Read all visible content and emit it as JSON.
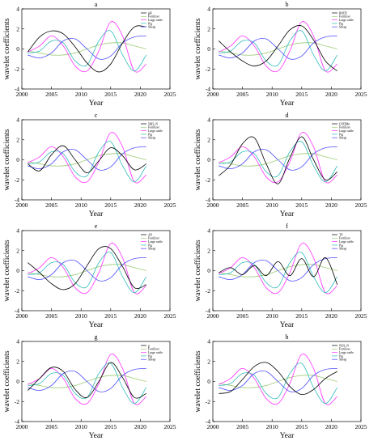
{
  "figure": {
    "background": "#ffffff"
  },
  "series_styles": {
    "first": {
      "color": "#000000"
    },
    "Fertilizer": {
      "color": "#9ccd74"
    },
    "Large cattle": {
      "color": "#ff33ff"
    },
    "Pig": {
      "color": "#33bbbb"
    },
    "Sheep": {
      "color": "#4c4cff"
    }
  },
  "chart_data": [
    {
      "type": "line",
      "title": "a",
      "xlabel": "Year",
      "ylabel": "wavelet coefficients",
      "xlim": [
        2000,
        2025
      ],
      "ylim": [
        -4,
        4
      ],
      "xticks": [
        2000,
        2005,
        2010,
        2015,
        2020,
        2025
      ],
      "yticks": [
        -4,
        -2,
        0,
        2,
        4
      ],
      "legend_position": "top-right",
      "x": [
        2001,
        2003,
        2005,
        2007,
        2009,
        2011,
        2013,
        2015,
        2017,
        2019,
        2021
      ],
      "series": [
        {
          "name": "pH",
          "values": [
            -0.3,
            1.2,
            1.8,
            1.5,
            0.2,
            -1.4,
            -2.3,
            -1.5,
            0.6,
            2.2,
            2.2
          ]
        },
        {
          "name": "Fertilizer",
          "values": [
            -0.2,
            -0.4,
            -0.6,
            -0.6,
            -0.4,
            0.0,
            0.4,
            0.6,
            0.6,
            0.3,
            0.0
          ]
        },
        {
          "name": "Large cattle",
          "values": [
            -0.3,
            0.3,
            1.3,
            0.3,
            -1.7,
            -2.2,
            -0.2,
            2.7,
            1.3,
            -2.2,
            -1.5
          ]
        },
        {
          "name": "Pig",
          "values": [
            -0.4,
            -0.2,
            0.8,
            0.6,
            -1.2,
            -1.6,
            0.8,
            1.8,
            -0.6,
            -2.2,
            -0.6
          ]
        },
        {
          "name": "Sheep",
          "values": [
            -0.6,
            -0.9,
            -0.4,
            0.8,
            1.0,
            0.0,
            -1.0,
            -0.7,
            0.6,
            1.2,
            1.3
          ]
        }
      ]
    },
    {
      "type": "line",
      "title": "b",
      "xlabel": "Year",
      "ylabel": "wavelet coefficients",
      "xlim": [
        2000,
        2025
      ],
      "ylim": [
        -4,
        4
      ],
      "xticks": [
        2000,
        2005,
        2010,
        2015,
        2020,
        2025
      ],
      "yticks": [
        -4,
        -2,
        0,
        2,
        4
      ],
      "legend_position": "top-right",
      "x": [
        2001,
        2003,
        2005,
        2007,
        2009,
        2011,
        2013,
        2015,
        2017,
        2019,
        2021
      ],
      "series": [
        {
          "name": "BOD5",
          "values": [
            0.8,
            -0.3,
            -1.2,
            -1.7,
            -1.2,
            0.3,
            1.9,
            2.3,
            0.9,
            -1.2,
            -2.2
          ]
        },
        {
          "name": "Fertilizer",
          "values": [
            -0.2,
            -0.4,
            -0.6,
            -0.6,
            -0.4,
            0.0,
            0.4,
            0.6,
            0.6,
            0.3,
            0.0
          ]
        },
        {
          "name": "Large cattle",
          "values": [
            -0.3,
            0.3,
            1.3,
            0.3,
            -1.7,
            -2.2,
            -0.2,
            2.7,
            1.3,
            -2.2,
            -1.5
          ]
        },
        {
          "name": "Pig",
          "values": [
            -0.4,
            -0.2,
            0.8,
            0.6,
            -1.2,
            -1.6,
            0.8,
            1.8,
            -0.6,
            -2.2,
            -0.6
          ]
        },
        {
          "name": "Sheep",
          "values": [
            -0.6,
            -0.9,
            -0.4,
            0.8,
            1.0,
            0.0,
            -1.0,
            -0.7,
            0.6,
            1.2,
            1.3
          ]
        }
      ]
    },
    {
      "type": "line",
      "title": "c",
      "xlabel": "Year",
      "ylabel": "wavelet coefficients",
      "xlim": [
        2000,
        2025
      ],
      "ylim": [
        -4,
        4
      ],
      "xticks": [
        2000,
        2005,
        2010,
        2015,
        2020,
        2025
      ],
      "yticks": [
        -4,
        -2,
        0,
        2,
        4
      ],
      "legend_position": "top-right",
      "x": [
        2001,
        2003,
        2005,
        2007,
        2009,
        2011,
        2013,
        2015,
        2017,
        2019,
        2021
      ],
      "series": [
        {
          "name": "NH3_N",
          "values": [
            -0.4,
            -1.1,
            0.5,
            1.4,
            0.0,
            -1.3,
            -0.1,
            1.2,
            0.4,
            -1.0,
            -0.4
          ]
        },
        {
          "name": "Fertilizer",
          "values": [
            -0.2,
            -0.4,
            -0.6,
            -0.6,
            -0.4,
            0.0,
            0.4,
            0.6,
            0.6,
            0.3,
            0.0
          ]
        },
        {
          "name": "Large cattle",
          "values": [
            -0.3,
            0.3,
            1.3,
            0.3,
            -1.7,
            -2.2,
            -0.2,
            2.7,
            1.3,
            -2.2,
            -1.5
          ]
        },
        {
          "name": "Pig",
          "values": [
            -0.4,
            -0.2,
            0.8,
            0.6,
            -1.2,
            -1.6,
            0.8,
            1.8,
            -0.6,
            -2.2,
            -0.6
          ]
        },
        {
          "name": "Sheep",
          "values": [
            -0.6,
            -0.9,
            -0.4,
            0.8,
            1.0,
            0.0,
            -1.0,
            -0.7,
            0.6,
            1.2,
            1.3
          ]
        }
      ]
    },
    {
      "type": "line",
      "title": "d",
      "xlabel": "Year",
      "ylabel": "wavelet coefficients",
      "xlim": [
        2000,
        2025
      ],
      "ylim": [
        -4,
        4
      ],
      "xticks": [
        2000,
        2005,
        2010,
        2015,
        2020,
        2025
      ],
      "yticks": [
        -4,
        -2,
        0,
        2,
        4
      ],
      "legend_position": "top-right",
      "x": [
        2001,
        2003,
        2005,
        2007,
        2009,
        2011,
        2013,
        2015,
        2017,
        2019,
        2021
      ],
      "series": [
        {
          "name": "CODMn",
          "values": [
            -1.6,
            -0.5,
            1.6,
            2.2,
            -0.4,
            -2.4,
            0.2,
            2.3,
            0.0,
            -2.0,
            -1.2
          ]
        },
        {
          "name": "Fertilizer",
          "values": [
            -0.2,
            -0.4,
            -0.6,
            -0.6,
            -0.4,
            0.0,
            0.4,
            0.6,
            0.6,
            0.3,
            0.0
          ]
        },
        {
          "name": "Large cattle",
          "values": [
            -0.3,
            0.3,
            1.3,
            0.3,
            -1.7,
            -2.2,
            -0.2,
            2.7,
            1.3,
            -2.2,
            -1.5
          ]
        },
        {
          "name": "Pig",
          "values": [
            -0.4,
            -0.2,
            0.8,
            0.6,
            -1.2,
            -1.6,
            0.8,
            1.8,
            -0.6,
            -2.2,
            -0.6
          ]
        },
        {
          "name": "Sheep",
          "values": [
            -0.6,
            -0.9,
            -0.4,
            0.8,
            1.0,
            0.0,
            -1.0,
            -0.7,
            0.6,
            1.2,
            1.3
          ]
        }
      ]
    },
    {
      "type": "line",
      "title": "e",
      "xlabel": "Year",
      "ylabel": "wavelet coefficients",
      "xlim": [
        2000,
        2025
      ],
      "ylim": [
        -4,
        4
      ],
      "xticks": [
        2000,
        2005,
        2010,
        2015,
        2020,
        2025
      ],
      "yticks": [
        -4,
        -2,
        0,
        2,
        4
      ],
      "legend_position": "top-right",
      "x": [
        2001,
        2003,
        2005,
        2007,
        2009,
        2011,
        2013,
        2015,
        2017,
        2019,
        2021
      ],
      "series": [
        {
          "name": "AP",
          "values": [
            0.8,
            -0.2,
            -1.3,
            -1.9,
            -1.3,
            0.5,
            2.2,
            2.2,
            0.4,
            -1.7,
            -1.4
          ]
        },
        {
          "name": "Fertilizer",
          "values": [
            -0.2,
            -0.4,
            -0.6,
            -0.6,
            -0.4,
            0.0,
            0.4,
            0.6,
            0.6,
            0.3,
            0.0
          ]
        },
        {
          "name": "Large cattle",
          "values": [
            -0.3,
            0.3,
            1.3,
            0.3,
            -1.7,
            -2.2,
            -0.2,
            2.7,
            1.3,
            -2.2,
            -1.5
          ]
        },
        {
          "name": "Pig",
          "values": [
            -0.4,
            -0.2,
            0.8,
            0.6,
            -1.2,
            -1.6,
            0.8,
            1.8,
            -0.6,
            -2.2,
            -0.6
          ]
        },
        {
          "name": "Sheep",
          "values": [
            -0.6,
            -0.9,
            -0.4,
            0.8,
            1.0,
            0.0,
            -1.0,
            -0.7,
            0.6,
            1.2,
            1.3
          ]
        }
      ]
    },
    {
      "type": "line",
      "title": "f",
      "xlabel": "Year",
      "ylabel": "wavelet coefficients",
      "xlim": [
        2000,
        2025
      ],
      "ylim": [
        -4,
        4
      ],
      "xticks": [
        2000,
        2005,
        2010,
        2015,
        2020,
        2025
      ],
      "yticks": [
        -4,
        -2,
        0,
        2,
        4
      ],
      "legend_position": "top-right",
      "x": [
        2001,
        2003,
        2005,
        2007,
        2009,
        2011,
        2013,
        2015,
        2017,
        2019,
        2021
      ],
      "series": [
        {
          "name": "TP",
          "values": [
            -0.2,
            0.3,
            -0.4,
            0.5,
            -0.5,
            0.9,
            -0.5,
            1.2,
            -0.6,
            1.3,
            -1.4
          ]
        },
        {
          "name": "Fertilizer",
          "values": [
            -0.2,
            -0.4,
            -0.6,
            -0.6,
            -0.4,
            0.0,
            0.4,
            0.6,
            0.6,
            0.3,
            0.0
          ]
        },
        {
          "name": "Large cattle",
          "values": [
            -0.3,
            0.3,
            1.3,
            0.3,
            -1.7,
            -2.2,
            -0.2,
            2.7,
            1.3,
            -2.2,
            -1.5
          ]
        },
        {
          "name": "Pig",
          "values": [
            -0.4,
            -0.2,
            0.8,
            0.6,
            -1.2,
            -1.6,
            0.8,
            1.8,
            -0.6,
            -2.2,
            -0.6
          ]
        },
        {
          "name": "Sheep",
          "values": [
            -0.6,
            -0.9,
            -0.4,
            0.8,
            1.0,
            0.0,
            -1.0,
            -0.7,
            0.6,
            1.2,
            1.3
          ]
        }
      ]
    },
    {
      "type": "line",
      "title": "g",
      "xlabel": "Year",
      "ylabel": "wavelet coefficients",
      "xlim": [
        2000,
        2025
      ],
      "ylim": [
        -4,
        4
      ],
      "xticks": [
        2000,
        2005,
        2010,
        2015,
        2020,
        2025
      ],
      "yticks": [
        -4,
        -2,
        0,
        2,
        4
      ],
      "legend_position": "top-right",
      "x": [
        2001,
        2003,
        2005,
        2007,
        2009,
        2011,
        2013,
        2015,
        2017,
        2019,
        2021
      ],
      "series": [
        {
          "name": "p",
          "values": [
            -0.9,
            0.3,
            1.4,
            1.0,
            -0.8,
            -1.6,
            0.0,
            1.9,
            0.4,
            -1.6,
            -1.2
          ]
        },
        {
          "name": "Fertilizer",
          "values": [
            -0.2,
            -0.4,
            -0.6,
            -0.6,
            -0.4,
            0.0,
            0.4,
            0.6,
            0.6,
            0.3,
            0.0
          ]
        },
        {
          "name": "Large cattle",
          "values": [
            -0.3,
            0.3,
            1.3,
            0.3,
            -1.7,
            -2.2,
            -0.2,
            2.7,
            1.3,
            -2.2,
            -1.5
          ]
        },
        {
          "name": "Pig",
          "values": [
            -0.4,
            -0.2,
            0.8,
            0.6,
            -1.2,
            -1.6,
            0.8,
            1.8,
            -0.6,
            -2.2,
            -0.6
          ]
        },
        {
          "name": "Sheep",
          "values": [
            -0.6,
            -0.9,
            -0.4,
            0.8,
            1.0,
            0.0,
            -1.0,
            -0.7,
            0.6,
            1.2,
            1.3
          ]
        }
      ]
    },
    {
      "type": "line",
      "title": "h",
      "xlabel": "Year",
      "ylabel": "wavelet coefficients",
      "xlim": [
        2000,
        2025
      ],
      "ylim": [
        -4,
        4
      ],
      "xticks": [
        2000,
        2005,
        2010,
        2015,
        2020,
        2025
      ],
      "yticks": [
        -4,
        -2,
        0,
        2,
        4
      ],
      "legend_position": "top-right",
      "x": [
        2001,
        2003,
        2005,
        2007,
        2009,
        2011,
        2013,
        2015,
        2017,
        2019,
        2021
      ],
      "series": [
        {
          "name": "NO3_N",
          "values": [
            -1.2,
            -1.0,
            0.2,
            1.5,
            1.9,
            1.0,
            -0.5,
            -1.3,
            -0.8,
            0.3,
            1.0
          ]
        },
        {
          "name": "Fertilizer",
          "values": [
            -0.2,
            -0.4,
            -0.6,
            -0.6,
            -0.4,
            0.0,
            0.4,
            0.6,
            0.6,
            0.3,
            0.0
          ]
        },
        {
          "name": "Large cattle",
          "values": [
            -0.3,
            0.3,
            1.3,
            0.3,
            -1.7,
            -2.2,
            -0.2,
            2.7,
            1.3,
            -2.2,
            -1.5
          ]
        },
        {
          "name": "Pig",
          "values": [
            -0.4,
            -0.2,
            0.8,
            0.6,
            -1.2,
            -1.6,
            0.8,
            1.8,
            -0.6,
            -2.2,
            -0.6
          ]
        },
        {
          "name": "Sheep",
          "values": [
            -0.6,
            -0.9,
            -0.4,
            0.8,
            1.0,
            0.0,
            -1.0,
            -0.7,
            0.6,
            1.2,
            1.3
          ]
        }
      ]
    }
  ]
}
